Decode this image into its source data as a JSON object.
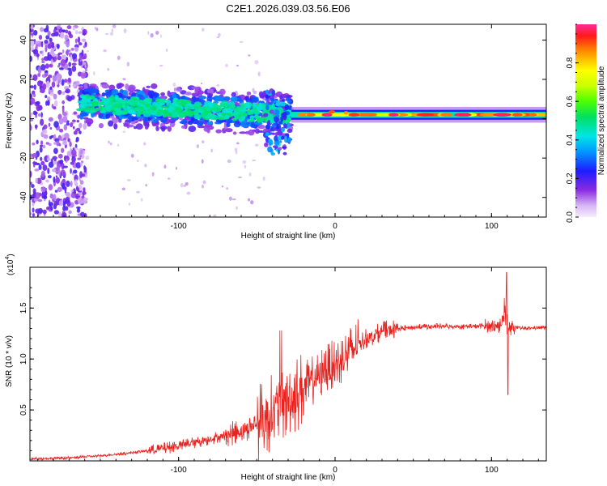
{
  "title": "C2E1.2026.039.03.56.E06",
  "chart_data": [
    {
      "type": "heatmap",
      "xlabel": "Height of straight line (km)",
      "ylabel": "Frequency (Hz)",
      "xlim": [
        -195,
        135
      ],
      "ylim": [
        -50,
        48
      ],
      "xticks": [
        -100,
        0,
        100
      ],
      "yticks": [
        -40,
        -20,
        0,
        20,
        40
      ],
      "colorbar": {
        "label": "Normalized spectral amplitude",
        "range": [
          0,
          1
        ],
        "ticks": [
          0.0,
          0.2,
          0.4,
          0.6,
          0.8
        ]
      },
      "regions": [
        {
          "name": "scattered",
          "x": [
            -195,
            -163
          ],
          "freq": [
            -50,
            48
          ],
          "amplitude": 0.1
        },
        {
          "name": "broadband-band",
          "x": [
            -163,
            -30
          ],
          "freq_center": [
            8,
            3
          ],
          "freq_halfwidth": 6,
          "amplitude": 0.45
        },
        {
          "name": "transition-spike",
          "x": [
            -45,
            -28
          ],
          "freq": [
            -18,
            14
          ],
          "amplitude": 0.35
        },
        {
          "name": "narrow-line",
          "x": [
            -28,
            135
          ],
          "freq_center": 2,
          "amplitude": 0.95
        }
      ]
    },
    {
      "type": "line",
      "xlabel": "Height of straight line (km)",
      "ylabel": "SNR (10 * v/v)",
      "scale_label": "(x10",
      "scale_exp": "4",
      "xlim": [
        -195,
        135
      ],
      "ylim": [
        0,
        1.9
      ],
      "xticks": [
        -100,
        0,
        100
      ],
      "yticks": [
        0.5,
        1.0,
        1.5
      ],
      "series": [
        {
          "name": "SNR",
          "color": "#e8231f",
          "x": [
            -195,
            -170,
            -150,
            -130,
            -110,
            -90,
            -70,
            -55,
            -45,
            -35,
            -30,
            -25,
            -20,
            -15,
            -10,
            -5,
            0,
            5,
            10,
            15,
            20,
            30,
            40,
            50,
            60,
            70,
            80,
            90,
            100,
            105,
            108,
            110,
            112,
            115,
            120,
            135
          ],
          "values": [
            0.02,
            0.03,
            0.05,
            0.08,
            0.12,
            0.18,
            0.25,
            0.32,
            0.42,
            0.55,
            0.6,
            0.65,
            0.72,
            0.78,
            0.85,
            0.9,
            0.95,
            1.0,
            1.08,
            1.15,
            1.2,
            1.27,
            1.3,
            1.31,
            1.32,
            1.32,
            1.32,
            1.32,
            1.33,
            1.32,
            1.4,
            1.3,
            1.3,
            1.31,
            1.3,
            1.31
          ]
        }
      ]
    }
  ]
}
